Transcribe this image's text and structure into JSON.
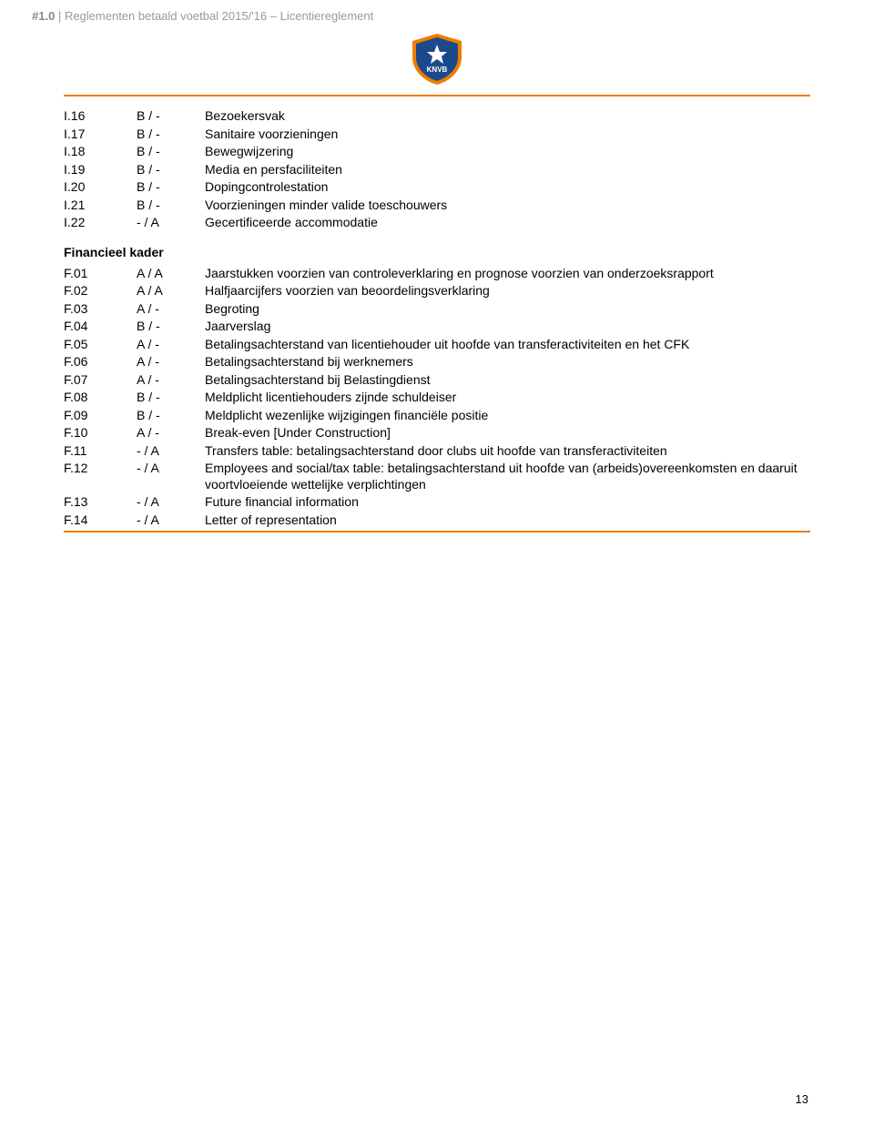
{
  "header": {
    "prefix": "#1.0",
    "title": "Reglementen betaald voetbal 2015/'16 – Licentiereglement"
  },
  "colors": {
    "accent": "#f07d00",
    "logo_blue": "#1a4a8a",
    "logo_orange": "#f07d00"
  },
  "section1": {
    "rows": [
      {
        "code": "I.16",
        "rate": "B / -",
        "desc": "Bezoekersvak"
      },
      {
        "code": "I.17",
        "rate": "B / -",
        "desc": "Sanitaire voorzieningen"
      },
      {
        "code": "I.18",
        "rate": "B / -",
        "desc": "Bewegwijzering"
      },
      {
        "code": "I.19",
        "rate": "B / -",
        "desc": "Media en persfaciliteiten"
      },
      {
        "code": "I.20",
        "rate": "B / -",
        "desc": "Dopingcontrolestation"
      },
      {
        "code": "I.21",
        "rate": "B / -",
        "desc": "Voorzieningen minder valide toeschouwers"
      },
      {
        "code": "I.22",
        "rate": "- / A",
        "desc": "Gecertificeerde accommodatie"
      }
    ]
  },
  "section2": {
    "heading": "Financieel kader",
    "rows": [
      {
        "code": "F.01",
        "rate": "A / A",
        "desc": "Jaarstukken voorzien van controleverklaring en prognose voorzien van onderzoeksrapport"
      },
      {
        "code": "F.02",
        "rate": "A / A",
        "desc": "Halfjaarcijfers voorzien van beoordelingsverklaring"
      },
      {
        "code": "F.03",
        "rate": "A / -",
        "desc": "Begroting"
      },
      {
        "code": "F.04",
        "rate": "B / -",
        "desc": "Jaarverslag"
      },
      {
        "code": "F.05",
        "rate": "A / -",
        "desc": "Betalingsachterstand van licentiehouder uit hoofde van transferactiviteiten en het CFK"
      },
      {
        "code": "F.06",
        "rate": "A / -",
        "desc": "Betalingsachterstand bij werknemers"
      },
      {
        "code": "F.07",
        "rate": "A / -",
        "desc": "Betalingsachterstand bij Belastingdienst"
      },
      {
        "code": "F.08",
        "rate": "B / -",
        "desc": "Meldplicht licentiehouders zijnde schuldeiser"
      },
      {
        "code": "F.09",
        "rate": "B / -",
        "desc": "Meldplicht wezenlijke wijzigingen financiële positie"
      },
      {
        "code": "F.10",
        "rate": "A / -",
        "desc": "Break-even [Under Construction]"
      },
      {
        "code": "F.11",
        "rate": "- / A",
        "desc": "Transfers table: betalingsachterstand door clubs uit hoofde van transferactiviteiten"
      },
      {
        "code": "F.12",
        "rate": "- / A",
        "desc": "Employees and social/tax table: betalingsachterstand uit hoofde van (arbeids)overeenkomsten en daaruit voortvloeiende wettelijke verplichtingen"
      },
      {
        "code": "F.13",
        "rate": "- / A",
        "desc": "Future financial information"
      },
      {
        "code": "F.14",
        "rate": "- / A",
        "desc": "Letter of representation"
      }
    ]
  },
  "page_number": "13"
}
